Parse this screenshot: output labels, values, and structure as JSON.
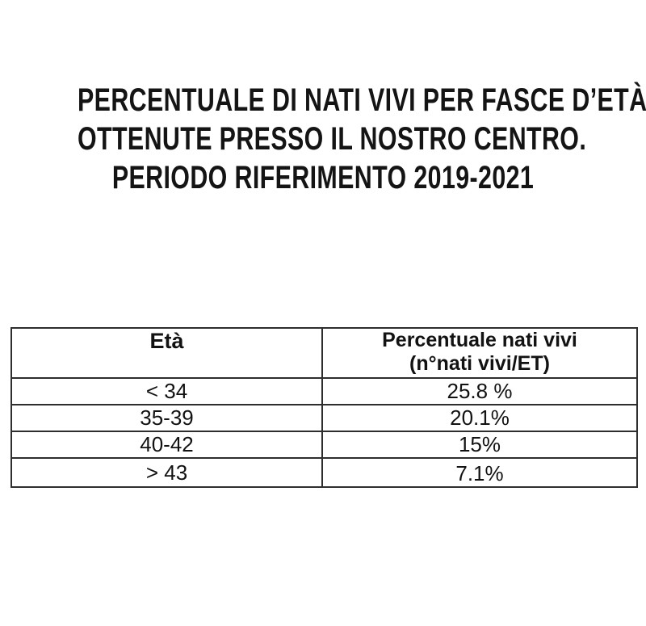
{
  "page": {
    "background": "#ffffff",
    "text_color": "#141414",
    "table_border_color": "#2e2e2e"
  },
  "title": {
    "line1": "PERCENTUALE DI NATI VIVI PER FASCE D’ETÀ",
    "line2": "OTTENUTE PRESSO IL NOSTRO CENTRO.",
    "line3": "PERIODO RIFERIMENTO 2019-2021"
  },
  "table": {
    "columns": [
      {
        "header": "Età"
      },
      {
        "header_line1": "Percentuale nati vivi",
        "header_line2": "(n°nati vivi/ET)"
      }
    ],
    "rows": [
      {
        "age": "< 34",
        "percentage": "25.8 %"
      },
      {
        "age": "35-39",
        "percentage": "20.1%"
      },
      {
        "age": "40-42",
        "percentage": "15%"
      },
      {
        "age": "> 43",
        "percentage": "7.1%"
      }
    ]
  }
}
